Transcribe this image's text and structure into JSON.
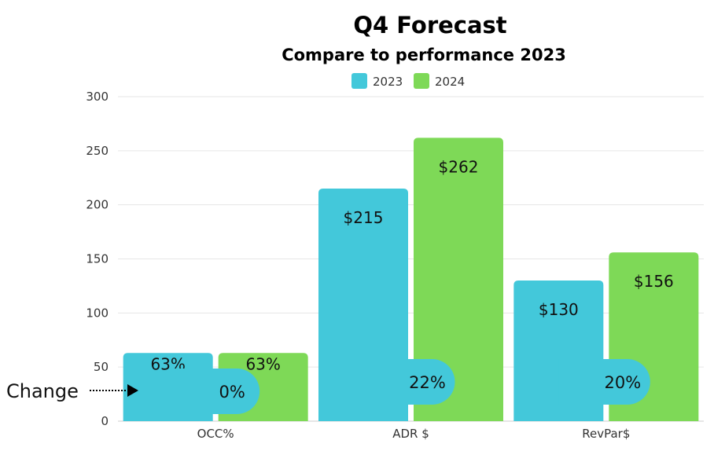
{
  "chart_data": {
    "type": "bar",
    "title": "Q4 Forecast",
    "subtitle": "Compare to performance 2023",
    "categories": [
      "OCC%",
      "ADR $",
      "RevPar$"
    ],
    "series": [
      {
        "name": "2023",
        "values": [
          63,
          215,
          130
        ],
        "labels": [
          "63%",
          "$215",
          "$130"
        ]
      },
      {
        "name": "2024",
        "values": [
          63,
          262,
          156
        ],
        "labels": [
          "63%",
          "$262",
          "$156"
        ]
      }
    ],
    "ylim": [
      0,
      300
    ],
    "yticks": [
      "0",
      "50",
      "100",
      "150",
      "200",
      "250",
      "300"
    ],
    "grid": true,
    "legend_position": "top-center",
    "change_label": "Change",
    "changes": [
      "0%",
      "22%",
      "20%"
    ],
    "colors": {
      "series_2023": "#43c8da",
      "series_2024": "#7ed957",
      "grid": "#e6e6e6"
    }
  }
}
